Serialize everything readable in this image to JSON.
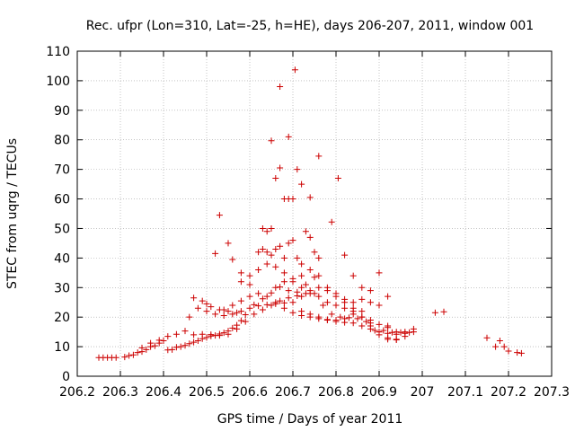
{
  "chart_data": {
    "type": "scatter",
    "title": "Rec. ufpr (Lon=310, Lat=-25, h=HE), days 206-207, 2011, window 001",
    "xlabel": "GPS time / Days of year 2011",
    "ylabel": "STEC from uqrg / TECUs",
    "xlim": [
      206.2,
      207.3
    ],
    "ylim": [
      0,
      110
    ],
    "xticks": [
      "206.2",
      "206.3",
      "206.4",
      "206.5",
      "206.6",
      "206.7",
      "206.8",
      "206.9",
      "207",
      "207.1",
      "207.2",
      "207.3"
    ],
    "yticks": [
      "0",
      "10",
      "20",
      "30",
      "40",
      "50",
      "60",
      "70",
      "80",
      "90",
      "100",
      "110"
    ],
    "marker_color": "#cc0000",
    "points": [
      [
        206.25,
        6.3
      ],
      [
        206.26,
        6.3
      ],
      [
        206.27,
        6.3
      ],
      [
        206.28,
        6.3
      ],
      [
        206.29,
        6.3
      ],
      [
        206.31,
        6.5
      ],
      [
        206.32,
        7.0
      ],
      [
        206.33,
        7.2
      ],
      [
        206.34,
        8.0
      ],
      [
        206.35,
        8.3
      ],
      [
        206.36,
        9.0
      ],
      [
        206.37,
        10.0
      ],
      [
        206.38,
        10.3
      ],
      [
        206.39,
        11.2
      ],
      [
        206.4,
        12.0
      ],
      [
        206.41,
        8.9
      ],
      [
        206.42,
        9.0
      ],
      [
        206.43,
        9.8
      ],
      [
        206.44,
        10.0
      ],
      [
        206.45,
        10.4
      ],
      [
        206.46,
        11.0
      ],
      [
        206.47,
        11.5
      ],
      [
        206.48,
        12.0
      ],
      [
        206.49,
        12.7
      ],
      [
        206.5,
        13.1
      ],
      [
        206.51,
        13.6
      ],
      [
        206.52,
        13.8
      ],
      [
        206.53,
        14.3
      ],
      [
        206.54,
        14.7
      ],
      [
        206.55,
        15.3
      ],
      [
        206.56,
        16.3
      ],
      [
        206.57,
        17.3
      ],
      [
        206.58,
        18.8
      ],
      [
        206.35,
        9.6
      ],
      [
        206.37,
        11.2
      ],
      [
        206.39,
        12.2
      ],
      [
        206.41,
        13.5
      ],
      [
        206.43,
        14.2
      ],
      [
        206.45,
        15.3
      ],
      [
        206.47,
        14.0
      ],
      [
        206.49,
        14.2
      ],
      [
        206.51,
        14.1
      ],
      [
        206.53,
        13.8
      ],
      [
        206.55,
        14.2
      ],
      [
        206.57,
        16.0
      ],
      [
        206.59,
        18.5
      ],
      [
        206.61,
        21.0
      ],
      [
        206.63,
        22.5
      ],
      [
        206.65,
        24.0
      ],
      [
        206.67,
        25.5
      ],
      [
        206.69,
        26.5
      ],
      [
        206.71,
        27.2
      ],
      [
        206.73,
        28.0
      ],
      [
        206.75,
        28.0
      ],
      [
        206.46,
        20.0
      ],
      [
        206.48,
        23.0
      ],
      [
        206.5,
        22.0
      ],
      [
        206.52,
        21.0
      ],
      [
        206.54,
        20.5
      ],
      [
        206.56,
        21.0
      ],
      [
        206.58,
        22.0
      ],
      [
        206.6,
        23.0
      ],
      [
        206.62,
        23.8
      ],
      [
        206.64,
        24.2
      ],
      [
        206.66,
        24.5
      ],
      [
        206.68,
        24.8
      ],
      [
        206.7,
        25.0
      ],
      [
        206.72,
        22.0
      ],
      [
        206.74,
        21.0
      ],
      [
        206.76,
        20.0
      ],
      [
        206.78,
        19.0
      ],
      [
        206.8,
        18.5
      ],
      [
        206.82,
        18.2
      ],
      [
        206.84,
        18.0
      ],
      [
        206.86,
        17.0
      ],
      [
        206.88,
        16.0
      ],
      [
        206.9,
        15.0
      ],
      [
        206.92,
        14.5
      ],
      [
        206.94,
        14.2
      ],
      [
        206.96,
        14.5
      ],
      [
        206.98,
        15.0
      ],
      [
        206.54,
        22.5
      ],
      [
        206.56,
        24.0
      ],
      [
        206.58,
        25.5
      ],
      [
        206.6,
        27.0
      ],
      [
        206.62,
        28.0
      ],
      [
        206.64,
        27.0
      ],
      [
        206.66,
        25.0
      ],
      [
        206.68,
        23.0
      ],
      [
        206.7,
        21.5
      ],
      [
        206.72,
        20.5
      ],
      [
        206.74,
        20.0
      ],
      [
        206.76,
        19.5
      ],
      [
        206.78,
        19.2
      ],
      [
        206.8,
        19.0
      ],
      [
        206.82,
        19.5
      ],
      [
        206.84,
        21.0
      ],
      [
        206.86,
        22.0
      ],
      [
        206.88,
        18.0
      ],
      [
        206.9,
        14.0
      ],
      [
        206.92,
        12.5
      ],
      [
        206.94,
        12.3
      ],
      [
        206.96,
        13.5
      ],
      [
        206.66,
        30.0
      ],
      [
        206.68,
        32.0
      ],
      [
        206.7,
        33.0
      ],
      [
        206.72,
        34.0
      ],
      [
        206.74,
        36.0
      ],
      [
        206.76,
        34.0
      ],
      [
        206.78,
        30.0
      ],
      [
        206.8,
        27.0
      ],
      [
        206.82,
        25.0
      ],
      [
        206.84,
        23.0
      ],
      [
        206.86,
        20.0
      ],
      [
        206.88,
        17.0
      ],
      [
        206.9,
        15.0
      ],
      [
        206.92,
        13.0
      ],
      [
        206.94,
        12.5
      ],
      [
        206.96,
        15.0
      ],
      [
        206.98,
        16.0
      ],
      [
        206.58,
        32.0
      ],
      [
        206.6,
        34.0
      ],
      [
        206.62,
        36.0
      ],
      [
        206.64,
        38.0
      ],
      [
        206.66,
        37.0
      ],
      [
        206.68,
        35.0
      ],
      [
        206.7,
        32.0
      ],
      [
        206.72,
        30.0
      ],
      [
        206.74,
        29.0
      ],
      [
        206.76,
        27.0
      ],
      [
        206.78,
        25.0
      ],
      [
        206.8,
        24.0
      ],
      [
        206.82,
        23.0
      ],
      [
        206.84,
        22.0
      ],
      [
        206.86,
        20.0
      ],
      [
        206.88,
        19.0
      ],
      [
        206.9,
        17.5
      ],
      [
        206.92,
        16.5
      ],
      [
        206.62,
        42.0
      ],
      [
        206.63,
        43.0
      ],
      [
        206.64,
        42.0
      ],
      [
        206.65,
        41.0
      ],
      [
        206.66,
        43.0
      ],
      [
        206.67,
        44.0
      ],
      [
        206.68,
        40.0
      ],
      [
        206.69,
        45.0
      ],
      [
        206.7,
        46.0
      ],
      [
        206.71,
        40.0
      ],
      [
        206.72,
        38.0
      ],
      [
        206.73,
        49.0
      ],
      [
        206.74,
        47.0
      ],
      [
        206.75,
        42.0
      ],
      [
        206.76,
        40.0
      ],
      [
        206.63,
        50.0
      ],
      [
        206.64,
        49.0
      ],
      [
        206.65,
        50.0
      ],
      [
        206.66,
        67.0
      ],
      [
        206.67,
        70.5
      ],
      [
        206.68,
        60.0
      ],
      [
        206.69,
        60.0
      ],
      [
        206.7,
        60.0
      ],
      [
        206.71,
        70.0
      ],
      [
        206.72,
        65.0
      ],
      [
        206.74,
        60.5
      ],
      [
        206.65,
        79.7
      ],
      [
        206.67,
        98.0
      ],
      [
        206.69,
        81.0
      ],
      [
        206.705,
        103.7
      ],
      [
        206.76,
        74.5
      ],
      [
        206.79,
        52.2
      ],
      [
        206.805,
        67.0
      ],
      [
        206.53,
        54.5
      ],
      [
        206.55,
        45.0
      ],
      [
        206.52,
        41.5
      ],
      [
        206.56,
        39.5
      ],
      [
        206.58,
        35.0
      ],
      [
        206.6,
        31.0
      ],
      [
        206.82,
        41.0
      ],
      [
        206.84,
        34.0
      ],
      [
        206.86,
        30.0
      ],
      [
        206.88,
        29.0
      ],
      [
        206.9,
        35.0
      ],
      [
        206.92,
        27.0
      ],
      [
        206.72,
        27.0
      ],
      [
        206.74,
        28.0
      ],
      [
        206.76,
        30.0
      ],
      [
        206.78,
        29.0
      ],
      [
        206.8,
        28.0
      ],
      [
        206.82,
        26.0
      ],
      [
        206.84,
        25.0
      ],
      [
        206.86,
        26.0
      ],
      [
        206.88,
        25.0
      ],
      [
        206.9,
        24.0
      ],
      [
        206.92,
        17.0
      ],
      [
        206.94,
        15.0
      ],
      [
        207.03,
        21.5
      ],
      [
        207.05,
        21.8
      ],
      [
        207.15,
        13.0
      ],
      [
        207.17,
        10.0
      ],
      [
        207.18,
        12.0
      ],
      [
        207.19,
        10.0
      ],
      [
        207.2,
        8.5
      ],
      [
        207.22,
        8.0
      ],
      [
        207.23,
        7.8
      ],
      [
        206.47,
        26.5
      ],
      [
        206.49,
        25.5
      ],
      [
        206.5,
        24.5
      ],
      [
        206.51,
        23.5
      ],
      [
        206.53,
        22.5
      ],
      [
        206.55,
        22.0
      ],
      [
        206.57,
        21.5
      ],
      [
        206.59,
        20.8
      ],
      [
        206.61,
        24.2
      ],
      [
        206.63,
        26.2
      ],
      [
        206.65,
        28.2
      ],
      [
        206.67,
        30.2
      ],
      [
        206.69,
        29.0
      ],
      [
        206.71,
        28.5
      ],
      [
        206.73,
        31.0
      ],
      [
        206.75,
        33.5
      ],
      [
        206.77,
        24.0
      ],
      [
        206.79,
        21.0
      ],
      [
        206.81,
        20.0
      ],
      [
        206.83,
        19.8
      ],
      [
        206.85,
        19.5
      ],
      [
        206.87,
        18.5
      ],
      [
        206.89,
        15.5
      ],
      [
        206.91,
        15.5
      ],
      [
        206.93,
        14.8
      ],
      [
        206.95,
        14.8
      ],
      [
        206.97,
        14.8
      ]
    ]
  }
}
